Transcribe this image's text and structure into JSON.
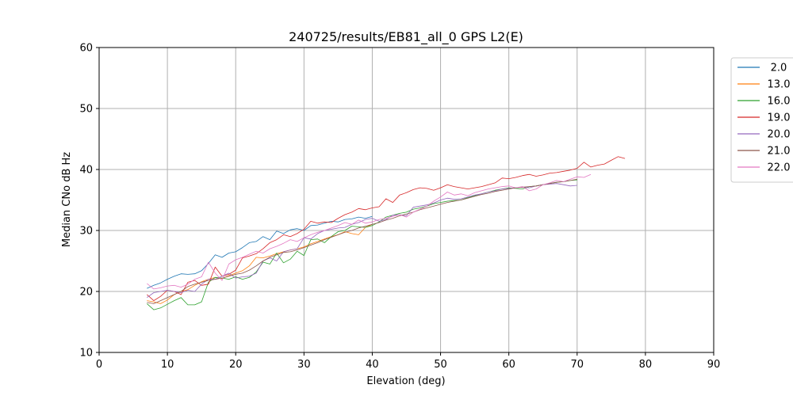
{
  "chart_data": {
    "type": "line",
    "title": "240725/results/EB81_all_0 GPS L2(E)",
    "xlabel": "Elevation (deg)",
    "ylabel": "Median CNo dB Hz",
    "xlim": [
      0,
      90
    ],
    "ylim": [
      10,
      60
    ],
    "xticks": [
      0,
      10,
      20,
      30,
      40,
      50,
      60,
      70,
      80,
      90
    ],
    "yticks": [
      10,
      20,
      30,
      40,
      50,
      60
    ],
    "grid": true,
    "legend_position": "right, outside top",
    "series": [
      {
        "name": "2.0",
        "color": "#1f77b4",
        "x": [
          7,
          8,
          9,
          10,
          11,
          12,
          13,
          14,
          15,
          16,
          17,
          18,
          19,
          20,
          21,
          22,
          23,
          24,
          25,
          26,
          27,
          28,
          29,
          30,
          31,
          32,
          33,
          34,
          35,
          36,
          37,
          38,
          39,
          40
        ],
        "y": [
          20.5,
          21.0,
          21.4,
          22.0,
          22.5,
          22.9,
          22.8,
          22.9,
          23.4,
          24.6,
          26.0,
          25.6,
          26.3,
          26.5,
          27.2,
          28.0,
          28.2,
          29.0,
          28.5,
          29.9,
          29.5,
          30.1,
          30.3,
          30.0,
          30.8,
          30.9,
          31.2,
          31.5,
          31.4,
          31.8,
          31.9,
          32.2,
          32.0,
          32.3
        ]
      },
      {
        "name": "13.0",
        "color": "#ff7f0e",
        "x": [
          7,
          8,
          9,
          10,
          11,
          12,
          13,
          14,
          15,
          16,
          17,
          18,
          19,
          20,
          21,
          22,
          23,
          24,
          25,
          26,
          27,
          28,
          29,
          30,
          31,
          32,
          33,
          34,
          35,
          36,
          37,
          38,
          39,
          40
        ],
        "y": [
          18.5,
          18.3,
          18.0,
          18.6,
          19.5,
          20.0,
          20.3,
          21.0,
          21.6,
          22.0,
          22.3,
          22.1,
          22.6,
          23.0,
          23.4,
          24.2,
          25.6,
          25.5,
          25.8,
          26.2,
          26.5,
          26.8,
          27.0,
          27.3,
          27.8,
          28.2,
          28.6,
          29.0,
          29.3,
          29.8,
          29.5,
          29.3,
          30.5,
          31.0
        ]
      },
      {
        "name": "16.0",
        "color": "#2ca02c",
        "x": [
          7,
          8,
          9,
          10,
          11,
          12,
          13,
          14,
          15,
          16,
          17,
          18,
          19,
          20,
          21,
          22,
          23,
          24,
          25,
          26,
          27,
          28,
          29,
          30,
          31,
          32,
          33,
          34,
          35,
          36,
          37,
          38,
          39,
          40,
          41,
          42,
          43,
          44,
          45,
          46,
          47,
          48,
          49,
          50,
          51,
          52,
          53,
          54,
          55,
          56,
          57,
          58,
          59,
          60,
          61,
          62,
          63,
          64,
          65,
          66,
          67,
          68,
          69,
          70
        ],
        "y": [
          18.0,
          17.0,
          17.3,
          17.9,
          18.5,
          19.0,
          17.8,
          17.8,
          18.3,
          21.5,
          22.3,
          22.2,
          22.0,
          22.4,
          22.0,
          22.3,
          23.2,
          24.8,
          24.5,
          26.3,
          24.7,
          25.3,
          26.6,
          25.9,
          28.5,
          28.6,
          28.0,
          29.0,
          29.8,
          30.0,
          30.7,
          30.6,
          30.5,
          30.8,
          31.4,
          32.2,
          32.5,
          32.8,
          33.0,
          33.5,
          33.7,
          34.0,
          34.4,
          34.6,
          34.8,
          34.9,
          35.0,
          35.4,
          35.7,
          36.0,
          36.3,
          36.6,
          36.8,
          37.0,
          36.9,
          36.8,
          37.2,
          37.3,
          37.5,
          37.7,
          37.9,
          38.0,
          38.2,
          38.3
        ]
      },
      {
        "name": "19.0",
        "color": "#d62728",
        "x": [
          7,
          8,
          9,
          10,
          11,
          12,
          13,
          14,
          15,
          16,
          17,
          18,
          19,
          20,
          21,
          22,
          23,
          24,
          25,
          26,
          27,
          28,
          29,
          30,
          31,
          32,
          33,
          34,
          35,
          36,
          37,
          38,
          39,
          40,
          41,
          42,
          43,
          44,
          45,
          46,
          47,
          48,
          49,
          50,
          51,
          52,
          53,
          54,
          55,
          56,
          57,
          58,
          59,
          60,
          61,
          62,
          63,
          64,
          65,
          66,
          67,
          68,
          69,
          70,
          71,
          72,
          73,
          74,
          75,
          76,
          77
        ],
        "y": [
          19.5,
          18.5,
          19.2,
          20.2,
          20.0,
          19.5,
          21.5,
          21.8,
          21.0,
          21.2,
          24.0,
          22.5,
          22.8,
          23.5,
          25.5,
          25.8,
          26.2,
          27.0,
          28.0,
          28.5,
          29.3,
          29.0,
          29.5,
          30.2,
          31.5,
          31.2,
          31.4,
          31.3,
          32.0,
          32.6,
          33.0,
          33.6,
          33.4,
          33.7,
          33.9,
          35.2,
          34.6,
          35.8,
          36.2,
          36.7,
          37.0,
          36.9,
          36.6,
          37.0,
          37.5,
          37.2,
          37.0,
          36.8,
          37.0,
          37.2,
          37.5,
          37.8,
          38.6,
          38.5,
          38.7,
          39.0,
          39.2,
          38.9,
          39.1,
          39.4,
          39.5,
          39.7,
          39.9,
          40.2,
          41.2,
          40.4,
          40.7,
          40.9,
          41.5,
          42.1,
          41.8
        ]
      },
      {
        "name": "20.0",
        "color": "#9467bd",
        "x": [
          7,
          8,
          9,
          10,
          11,
          12,
          13,
          14,
          15,
          16,
          17,
          18,
          19,
          20,
          21,
          22,
          23,
          24,
          25,
          26,
          27,
          28,
          29,
          30,
          31,
          32,
          33,
          34,
          35,
          36,
          37,
          38,
          39,
          40,
          41,
          42,
          43,
          44,
          45,
          46,
          47,
          48,
          49,
          50,
          51,
          52,
          53,
          54,
          55,
          56,
          57,
          58,
          59,
          60,
          61,
          62,
          63,
          64,
          65,
          66,
          67,
          68,
          69,
          70
        ],
        "y": [
          19.0,
          19.8,
          20.0,
          20.2,
          20.0,
          19.8,
          20.2,
          20.0,
          21.2,
          22.0,
          22.0,
          22.5,
          23.0,
          22.2,
          22.4,
          22.5,
          23.0,
          25.0,
          25.5,
          25.0,
          26.5,
          26.8,
          27.0,
          28.8,
          28.6,
          29.5,
          30.0,
          30.2,
          30.4,
          30.5,
          31.0,
          31.3,
          31.8,
          32.0,
          31.5,
          31.8,
          32.5,
          32.6,
          32.4,
          33.8,
          34.0,
          34.2,
          34.5,
          35.0,
          35.3,
          35.1,
          35.2,
          35.5,
          35.8,
          36.0,
          36.3,
          36.5,
          36.8,
          36.9,
          37.0,
          37.1,
          37.0,
          37.3,
          37.5,
          37.6,
          37.7,
          37.5,
          37.3,
          37.4
        ]
      },
      {
        "name": "21.0",
        "color": "#8c564b",
        "x": [
          7,
          8,
          9,
          10,
          11,
          12,
          13,
          14,
          15,
          16,
          17,
          18,
          19,
          20,
          21,
          22,
          23,
          24,
          25,
          26,
          27,
          28,
          29,
          30,
          31,
          32,
          33,
          34,
          35,
          36,
          37,
          38,
          39,
          40,
          41,
          42,
          43,
          44,
          45,
          46,
          47,
          48,
          49,
          50,
          51,
          52,
          53,
          54,
          55,
          56,
          57,
          58,
          59,
          60,
          61,
          62,
          63,
          64,
          65,
          66,
          67,
          68,
          69,
          70
        ],
        "y": [
          18.2,
          18.0,
          18.5,
          19.0,
          19.5,
          20.0,
          20.8,
          21.2,
          21.5,
          21.8,
          22.0,
          22.2,
          22.5,
          22.8,
          23.0,
          23.5,
          24.2,
          25.0,
          25.6,
          26.0,
          26.4,
          26.5,
          26.8,
          27.2,
          27.6,
          28.0,
          28.5,
          28.9,
          29.3,
          29.7,
          30.0,
          30.4,
          30.7,
          31.0,
          31.3,
          31.7,
          32.0,
          32.4,
          32.7,
          33.0,
          33.4,
          33.7,
          34.0,
          34.3,
          34.6,
          34.8,
          35.0,
          35.3,
          35.6,
          35.9,
          36.1,
          36.4,
          36.6,
          36.8,
          37.0,
          37.1,
          37.2,
          37.3,
          37.5,
          37.7,
          37.9,
          38.0,
          38.2,
          38.4
        ]
      },
      {
        "name": "22.0",
        "color": "#e377c2",
        "x": [
          7,
          8,
          9,
          10,
          11,
          12,
          13,
          14,
          15,
          16,
          17,
          18,
          19,
          20,
          21,
          22,
          23,
          24,
          25,
          26,
          27,
          28,
          29,
          30,
          31,
          32,
          33,
          34,
          35,
          36,
          37,
          38,
          39,
          40,
          41,
          42,
          43,
          44,
          45,
          46,
          47,
          48,
          49,
          50,
          51,
          52,
          53,
          54,
          55,
          56,
          57,
          58,
          59,
          60,
          61,
          62,
          63,
          64,
          65,
          66,
          67,
          68,
          69,
          70,
          71,
          72
        ],
        "y": [
          21.3,
          20.4,
          20.6,
          20.9,
          21.0,
          20.7,
          21.2,
          22.0,
          22.4,
          24.8,
          23.0,
          21.8,
          24.5,
          25.2,
          25.6,
          26.1,
          26.6,
          26.3,
          27.0,
          27.4,
          27.9,
          28.5,
          28.2,
          28.8,
          29.3,
          29.7,
          30.0,
          30.4,
          30.8,
          31.3,
          31.0,
          31.7,
          31.2,
          31.4,
          31.8,
          32.0,
          32.3,
          32.6,
          32.2,
          33.0,
          33.5,
          34.0,
          34.8,
          35.5,
          36.3,
          35.8,
          36.0,
          35.7,
          36.2,
          36.5,
          36.8,
          37.0,
          37.2,
          37.3,
          37.0,
          37.2,
          36.5,
          36.8,
          37.5,
          37.8,
          38.2,
          38.0,
          38.4,
          38.8,
          38.7,
          39.2
        ]
      }
    ]
  }
}
